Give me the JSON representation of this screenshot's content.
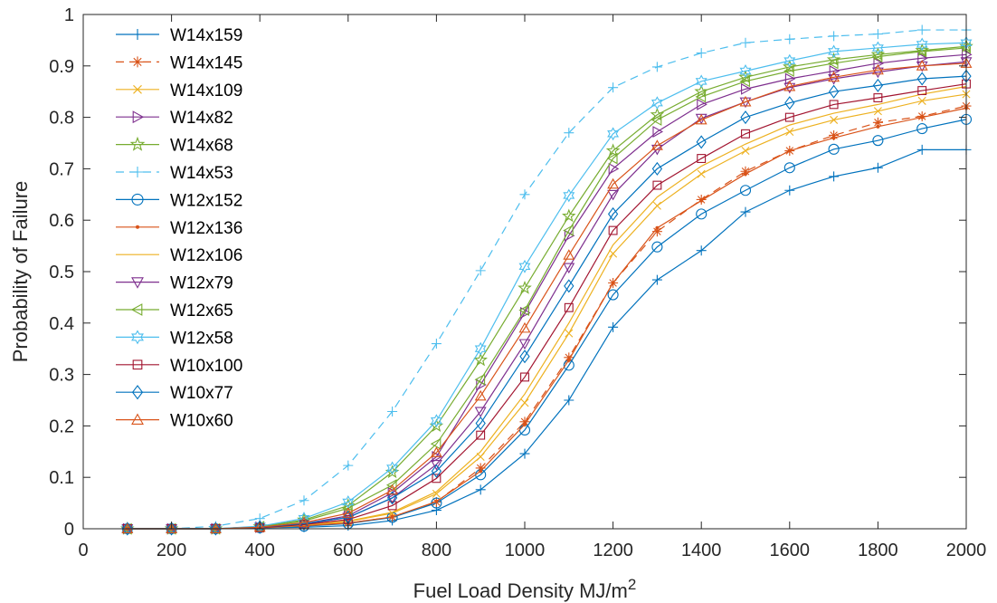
{
  "chart_data": {
    "type": "line",
    "title": "",
    "xlabel": "Fuel Load Density MJ/m",
    "xlabel_superscript": "2",
    "ylabel": "Probability of Failure",
    "xlim": [
      0,
      2000
    ],
    "ylim": [
      0,
      1
    ],
    "xticks": [
      0,
      200,
      400,
      600,
      800,
      1000,
      1200,
      1400,
      1600,
      1800,
      2000
    ],
    "yticks": [
      0,
      0.1,
      0.2,
      0.3,
      0.4,
      0.5,
      0.6,
      0.7,
      0.8,
      0.9,
      1
    ],
    "ytick_labels": [
      "0",
      "0.1",
      "0.2",
      "0.3",
      "0.4",
      "0.5",
      "0.6",
      "0.7",
      "0.8",
      "0.9",
      "1"
    ],
    "grid": false,
    "legend_position": "top-left",
    "x": [
      100,
      200,
      300,
      400,
      500,
      600,
      700,
      800,
      900,
      1000,
      1100,
      1200,
      1300,
      1400,
      1500,
      1600,
      1700,
      1800,
      1900,
      2000
    ],
    "series": [
      {
        "name": "W14x159",
        "color": "#0072BD",
        "marker": "plus",
        "dash": "solid",
        "values": [
          0,
          0,
          0,
          0.002,
          0.003,
          0.006,
          0.016,
          0.036,
          0.076,
          0.146,
          0.25,
          0.392,
          0.484,
          0.541,
          0.616,
          0.658,
          0.685,
          0.702,
          0.737,
          0.737
        ]
      },
      {
        "name": "W14x145",
        "color": "#D95319",
        "marker": "asterisk",
        "dash": "dashed",
        "values": [
          0,
          0,
          0,
          0.002,
          0.006,
          0.011,
          0.023,
          0.052,
          0.118,
          0.208,
          0.333,
          0.478,
          0.578,
          0.64,
          0.695,
          0.735,
          0.765,
          0.79,
          0.802,
          0.822
        ]
      },
      {
        "name": "W14x109",
        "color": "#EDB120",
        "marker": "x",
        "dash": "solid",
        "values": [
          0,
          0,
          0,
          0.002,
          0.006,
          0.014,
          0.03,
          0.068,
          0.14,
          0.245,
          0.38,
          0.535,
          0.628,
          0.69,
          0.735,
          0.772,
          0.795,
          0.812,
          0.832,
          0.845
        ]
      },
      {
        "name": "W14x82",
        "color": "#7E2F8E",
        "marker": "triangle-right",
        "dash": "solid",
        "values": [
          0,
          0,
          0,
          0.003,
          0.01,
          0.025,
          0.07,
          0.14,
          0.28,
          0.42,
          0.57,
          0.7,
          0.772,
          0.825,
          0.855,
          0.875,
          0.89,
          0.905,
          0.915,
          0.922
        ]
      },
      {
        "name": "W14x68",
        "color": "#77AC30",
        "marker": "pentagram",
        "dash": "solid",
        "values": [
          0,
          0,
          0,
          0.004,
          0.017,
          0.045,
          0.11,
          0.2,
          0.328,
          0.468,
          0.608,
          0.735,
          0.805,
          0.85,
          0.878,
          0.898,
          0.912,
          0.922,
          0.93,
          0.938
        ]
      },
      {
        "name": "W14x53",
        "color": "#4DBEEE",
        "marker": "plus",
        "dash": "dashed",
        "values": [
          0,
          0,
          0.005,
          0.02,
          0.055,
          0.123,
          0.228,
          0.36,
          0.502,
          0.65,
          0.77,
          0.858,
          0.898,
          0.925,
          0.945,
          0.952,
          0.958,
          0.962,
          0.97,
          0.97
        ]
      },
      {
        "name": "W12x152",
        "color": "#0072BD",
        "marker": "circle",
        "dash": "solid",
        "values": [
          0,
          0,
          0,
          0.002,
          0.005,
          0.01,
          0.022,
          0.05,
          0.105,
          0.192,
          0.318,
          0.455,
          0.548,
          0.612,
          0.658,
          0.702,
          0.738,
          0.755,
          0.778,
          0.796
        ]
      },
      {
        "name": "W12x136",
        "color": "#D95319",
        "marker": "point",
        "dash": "solid",
        "values": [
          0,
          0,
          0,
          0.002,
          0.006,
          0.011,
          0.023,
          0.053,
          0.112,
          0.203,
          0.328,
          0.478,
          0.585,
          0.638,
          0.69,
          0.735,
          0.76,
          0.782,
          0.8,
          0.818
        ]
      },
      {
        "name": "W12x106",
        "color": "#EDB120",
        "marker": "none",
        "dash": "solid",
        "values": [
          0,
          0,
          0,
          0.002,
          0.007,
          0.015,
          0.032,
          0.072,
          0.15,
          0.262,
          0.4,
          0.552,
          0.645,
          0.705,
          0.748,
          0.785,
          0.808,
          0.825,
          0.845,
          0.86
        ]
      },
      {
        "name": "W12x79",
        "color": "#7E2F8E",
        "marker": "triangle-down",
        "dash": "solid",
        "values": [
          0,
          0,
          0,
          0.003,
          0.009,
          0.022,
          0.06,
          0.125,
          0.228,
          0.36,
          0.508,
          0.65,
          0.738,
          0.798,
          0.83,
          0.858,
          0.875,
          0.888,
          0.9,
          0.908
        ]
      },
      {
        "name": "W12x65",
        "color": "#77AC30",
        "marker": "triangle-left",
        "dash": "solid",
        "values": [
          0,
          0,
          0,
          0.004,
          0.015,
          0.04,
          0.085,
          0.165,
          0.29,
          0.425,
          0.58,
          0.72,
          0.795,
          0.84,
          0.87,
          0.89,
          0.905,
          0.918,
          0.928,
          0.935
        ]
      },
      {
        "name": "W12x58",
        "color": "#4DBEEE",
        "marker": "hexagram",
        "dash": "solid",
        "values": [
          0,
          0,
          0,
          0.005,
          0.02,
          0.052,
          0.118,
          0.21,
          0.35,
          0.51,
          0.648,
          0.768,
          0.828,
          0.87,
          0.89,
          0.91,
          0.928,
          0.935,
          0.942,
          0.945
        ]
      },
      {
        "name": "W10x100",
        "color": "#A2142F",
        "marker": "square",
        "dash": "solid",
        "values": [
          0,
          0,
          0,
          0.002,
          0.008,
          0.018,
          0.045,
          0.098,
          0.182,
          0.295,
          0.43,
          0.58,
          0.668,
          0.72,
          0.768,
          0.8,
          0.825,
          0.838,
          0.852,
          0.865
        ]
      },
      {
        "name": "W10x77",
        "color": "#0072BD",
        "marker": "diamond",
        "dash": "solid",
        "values": [
          0,
          0,
          0,
          0.003,
          0.01,
          0.022,
          0.06,
          0.112,
          0.205,
          0.335,
          0.472,
          0.612,
          0.7,
          0.752,
          0.8,
          0.828,
          0.85,
          0.862,
          0.875,
          0.88
        ]
      },
      {
        "name": "W10x60",
        "color": "#D95319",
        "marker": "triangle-up",
        "dash": "solid",
        "values": [
          0,
          0,
          0,
          0.003,
          0.012,
          0.03,
          0.075,
          0.148,
          0.258,
          0.39,
          0.532,
          0.67,
          0.745,
          0.795,
          0.83,
          0.86,
          0.878,
          0.892,
          0.9,
          0.905
        ]
      }
    ]
  }
}
